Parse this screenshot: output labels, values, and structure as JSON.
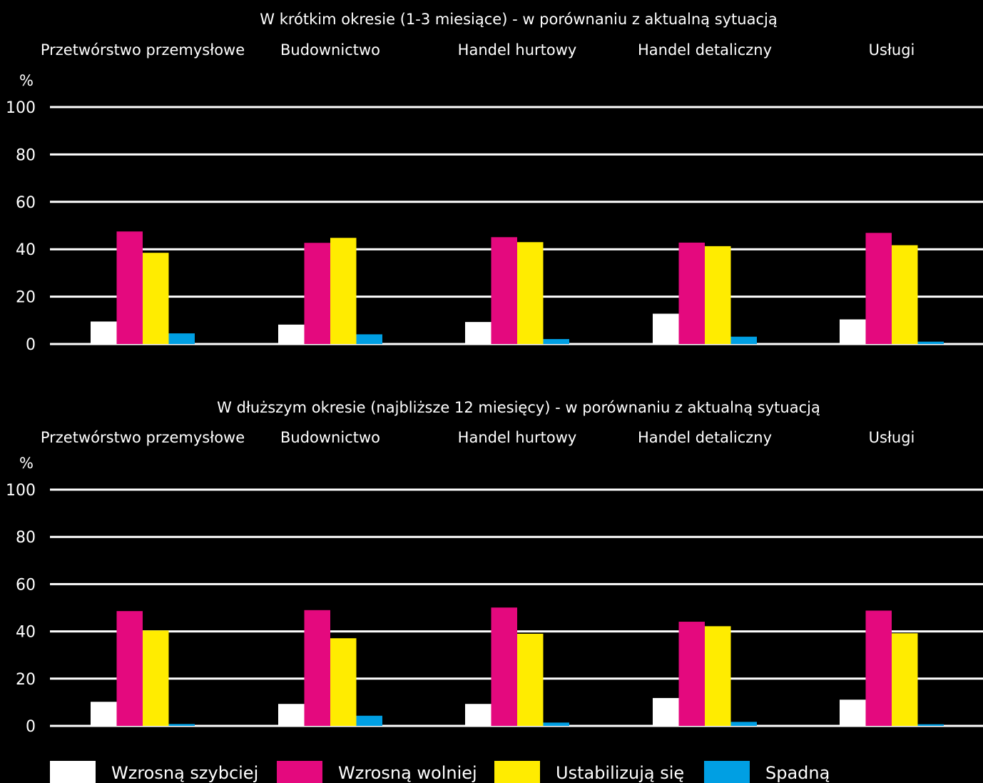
{
  "legend": [
    {
      "label": "Wzrosną szybciej",
      "color": "#ffffff"
    },
    {
      "label": "Wzrosną wolniej",
      "color": "#e4097e"
    },
    {
      "label": "Ustabilizują się",
      "color": "#ffec00"
    },
    {
      "label": "Spadną",
      "color": "#009fe3"
    }
  ],
  "chart_data": [
    {
      "type": "bar",
      "title": "W krótkim okresie (1-3 miesiące) - w porównaniu z aktualną sytuacją",
      "ylabel": "%",
      "ylim": [
        0,
        100
      ],
      "yticks": [
        0,
        20,
        40,
        60,
        80,
        100
      ],
      "grid": true,
      "categories": [
        "Przetwórstwo przemysłowe",
        "Budownictwo",
        "Handel hurtowy",
        "Handel detaliczny",
        "Usługi"
      ],
      "series": [
        {
          "name": "Wzrosną szybciej",
          "values": [
            9.5,
            8.2,
            9.3,
            12.8,
            10.4
          ]
        },
        {
          "name": "Wzrosną wolniej",
          "values": [
            47.5,
            42.7,
            45.1,
            42.8,
            46.9
          ]
        },
        {
          "name": "Ustabilizują się",
          "values": [
            38.5,
            44.8,
            43.0,
            41.3,
            41.7
          ]
        },
        {
          "name": "Spadną",
          "values": [
            4.5,
            4.1,
            2.1,
            3.1,
            1.0
          ]
        }
      ]
    },
    {
      "type": "bar",
      "title": "W dłuższym okresie (najbliższe 12 miesięcy) - w porównaniu z aktualną sytuacją",
      "ylabel": "%",
      "ylim": [
        0,
        100
      ],
      "yticks": [
        0,
        20,
        40,
        60,
        80,
        100
      ],
      "grid": true,
      "categories": [
        "Przetwórstwo przemysłowe",
        "Budownictwo",
        "Handel hurtowy",
        "Handel detaliczny",
        "Usługi"
      ],
      "series": [
        {
          "name": "Wzrosną szybciej",
          "values": [
            10.2,
            9.3,
            9.3,
            11.8,
            11.1
          ]
        },
        {
          "name": "Wzrosną wolniej",
          "values": [
            48.6,
            49.0,
            50.1,
            44.1,
            48.8
          ]
        },
        {
          "name": "Ustabilizują się",
          "values": [
            40.4,
            37.1,
            39.0,
            42.2,
            39.2
          ]
        },
        {
          "name": "Spadną",
          "values": [
            0.8,
            4.3,
            1.4,
            1.7,
            0.7
          ]
        }
      ]
    }
  ]
}
